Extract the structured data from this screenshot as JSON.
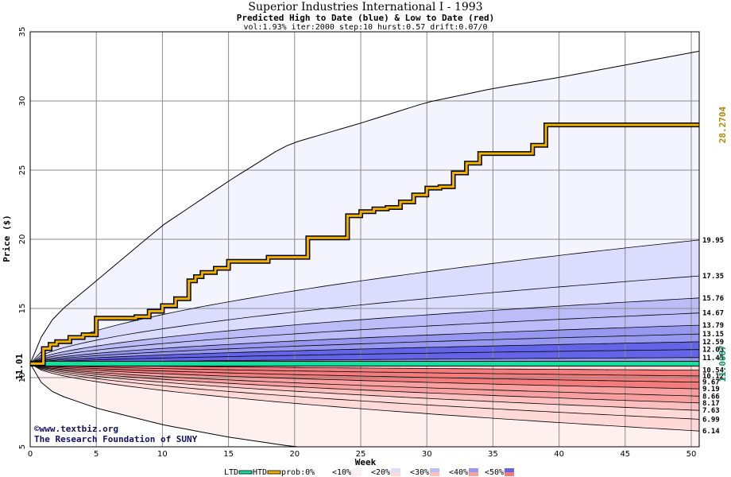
{
  "chart_data": {
    "type": "area",
    "title": "Superior Industries International I - 1993",
    "subtitle": "Predicted High to Date (blue) &  Low to Date (red)",
    "params": "vol:1.93% iter:2000 step:10 hurst:0.57 drift:0.07/0",
    "xlabel": "Week",
    "ylabel": "Price ($)",
    "xlim": [
      0,
      50.6
    ],
    "ylim": [
      5,
      35
    ],
    "xticks": [
      0,
      5,
      10,
      15,
      20,
      25,
      30,
      35,
      40,
      45,
      50
    ],
    "yticks": [
      5,
      10,
      15,
      20,
      25,
      30,
      35
    ],
    "grid": true,
    "start_price": 11.01,
    "start_label": "11.01",
    "htd_end_label": "28.2704",
    "ltd_end_label": "11.0087",
    "upper_band_end_values": [
      19.95,
      17.35,
      15.76,
      14.67,
      13.79,
      13.15,
      12.59,
      12.03,
      11.45
    ],
    "lower_band_end_values": [
      10.54,
      10.12,
      9.67,
      9.19,
      8.66,
      8.17,
      7.63,
      6.99,
      6.14
    ],
    "right_labels": [
      "19.95",
      "17.35",
      "15.76",
      "14.67",
      "13.79",
      "13.15",
      "12.59",
      "12.03",
      "11.45",
      "10.54",
      "10.12",
      "9.67",
      "9.19",
      "8.66",
      "8.17",
      "7.63",
      "6.99",
      "6.14"
    ],
    "outer_upper": {
      "x": [
        0,
        1,
        2,
        5,
        10,
        15,
        19,
        20,
        25,
        30,
        35,
        40,
        45,
        50.6
      ],
      "y": [
        11.01,
        13.3,
        14.6,
        17.0,
        21.0,
        24.2,
        26.6,
        27.0,
        28.4,
        29.9,
        30.9,
        31.7,
        32.6,
        33.6
      ]
    },
    "outer_lower": {
      "x": [
        0,
        1,
        2,
        5,
        10,
        15,
        20,
        25,
        30,
        35,
        40,
        45,
        50.6
      ],
      "y": [
        11.01,
        9.4,
        8.8,
        7.8,
        6.6,
        5.7,
        5.0,
        5.0,
        5.0,
        5.0,
        5.0,
        5.0,
        5.0
      ]
    },
    "htd_series": {
      "name": "HTD",
      "x": [
        0,
        1,
        1.5,
        2,
        3,
        4,
        5,
        6,
        7,
        8,
        9,
        10,
        11,
        12,
        12.5,
        13,
        14,
        15,
        16,
        17,
        18,
        19,
        20,
        21,
        22,
        23,
        24,
        25,
        26,
        27,
        28,
        29,
        30,
        31,
        32,
        33,
        34,
        35,
        36,
        37,
        38,
        39,
        40,
        45,
        50.6
      ],
      "y": [
        11.01,
        12.1,
        12.4,
        12.6,
        12.9,
        13.1,
        14.3,
        14.3,
        14.3,
        14.4,
        14.8,
        15.2,
        15.7,
        17.0,
        17.3,
        17.6,
        17.9,
        18.4,
        18.4,
        18.4,
        18.7,
        18.7,
        18.7,
        20.1,
        20.1,
        20.1,
        21.7,
        22.0,
        22.2,
        22.3,
        22.7,
        23.2,
        23.7,
        23.8,
        24.8,
        25.5,
        26.2,
        26.2,
        26.2,
        26.2,
        26.8,
        28.27,
        28.27,
        28.27,
        28.27
      ]
    },
    "ltd_series": {
      "name": "LTD",
      "x": [
        0,
        50.6
      ],
      "y": [
        11.01,
        11.01
      ]
    },
    "legend": [
      "LTD",
      "HTD",
      "prob:0%",
      "<10%",
      "<20%",
      "<30%",
      "<40%",
      "<50%"
    ],
    "legend_colors": {
      "ltd": "#10e0a0",
      "htd": "#f0b000",
      "p0": "#ffffff",
      "p10": "#f4f4ff",
      "p20": "#dcdcff",
      "p30": "#bcbcf8",
      "p40": "#9898f0",
      "p50": "#6464e8",
      "r10": "#fff0f0",
      "r20": "#ffd8d8",
      "r30": "#fcc0c0",
      "r40": "#f8a0a0",
      "r50": "#f47c7c"
    },
    "credit_lines": [
      "©www.textbiz.org",
      "The Research Foundation of SUNY"
    ]
  }
}
